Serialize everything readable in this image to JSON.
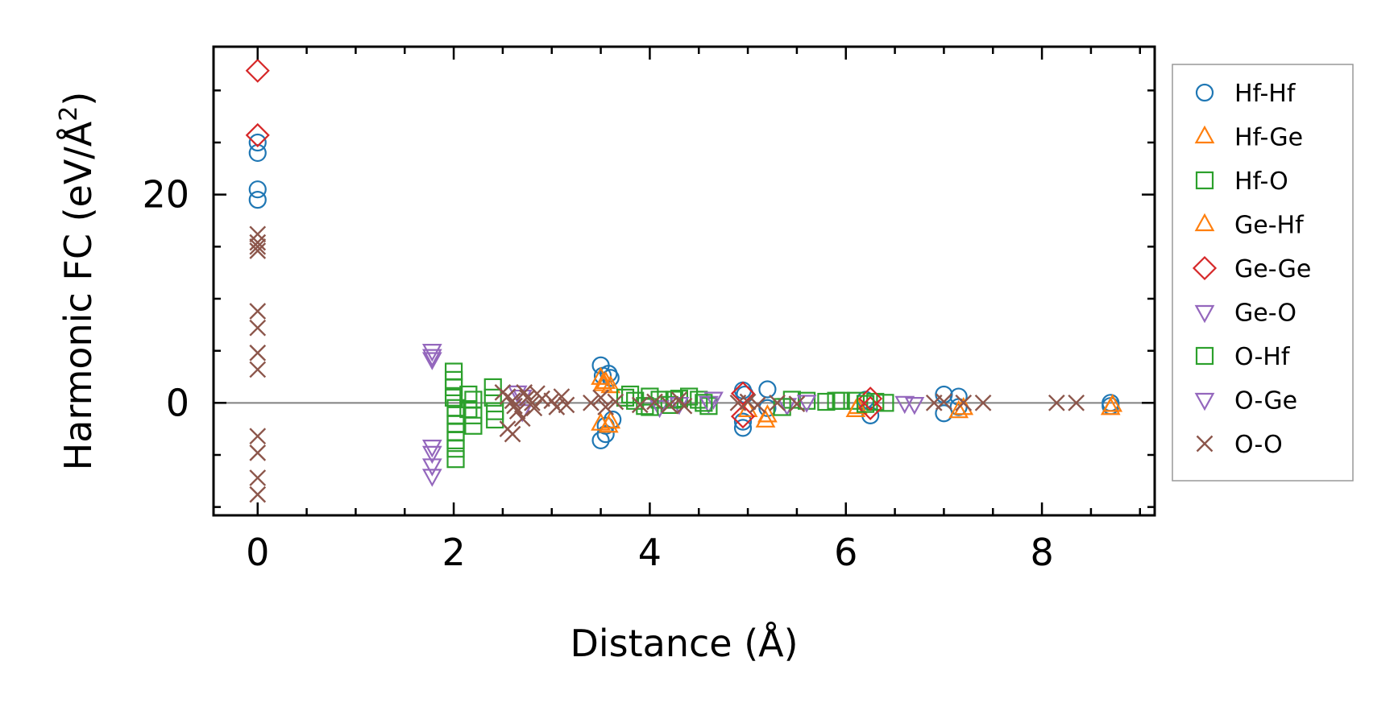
{
  "chart_data": {
    "type": "scatter",
    "xlabel": "Distance (Å)",
    "ylabel_main": "Harmonic FC (eV/Å",
    "ylabel_sup": "2",
    "ylabel_close": ")",
    "xlim": [
      -0.45,
      9.15
    ],
    "ylim": [
      -10.8,
      34.2
    ],
    "xticks": [
      0,
      2,
      4,
      6,
      8
    ],
    "yticks": [
      0,
      20
    ],
    "x_minor_step": 0.5,
    "y_minor_step": 5,
    "zero_line": true,
    "legend_position": "right-outside",
    "series": [
      {
        "name": "Hf-Hf",
        "marker": "circle",
        "color": "#1f77b4",
        "points": [
          [
            0,
            25
          ],
          [
            0,
            24
          ],
          [
            0,
            20.5
          ],
          [
            0,
            19.5
          ],
          [
            3.5,
            3.6
          ],
          [
            3.52,
            2.6
          ],
          [
            3.55,
            -2.2
          ],
          [
            3.5,
            -3.6
          ],
          [
            3.58,
            2.8
          ],
          [
            3.6,
            2.4
          ],
          [
            3.62,
            -1.6
          ],
          [
            3.55,
            -3.0
          ],
          [
            4.95,
            1.2
          ],
          [
            4.95,
            -2.4
          ],
          [
            4.95,
            -1.8
          ],
          [
            4.97,
            0.8
          ],
          [
            5.2,
            1.3
          ],
          [
            5.2,
            -0.5
          ],
          [
            6.25,
            -1.2
          ],
          [
            6.2,
            0.3
          ],
          [
            7.0,
            0.8
          ],
          [
            7.0,
            -1.0
          ],
          [
            7.15,
            0.6
          ],
          [
            7.15,
            -0.4
          ],
          [
            8.7,
            0.0
          ],
          [
            8.7,
            -0.3
          ]
        ]
      },
      {
        "name": "Hf-Ge",
        "marker": "triangle-up",
        "color": "#ff7f0e",
        "points": [
          [
            3.5,
            2.4
          ],
          [
            3.55,
            2.0
          ],
          [
            3.6,
            1.6
          ],
          [
            3.5,
            -2.0
          ],
          [
            3.58,
            -2.2
          ],
          [
            5.0,
            -0.7
          ],
          [
            5.18,
            -1.7
          ],
          [
            6.1,
            -0.7
          ],
          [
            7.15,
            -0.8
          ],
          [
            8.7,
            -0.5
          ]
        ]
      },
      {
        "name": "Hf-O",
        "marker": "square",
        "color": "#2ca02c",
        "points": [
          [
            2.0,
            3.0
          ],
          [
            2.0,
            2.2
          ],
          [
            2.0,
            1.5
          ],
          [
            2.0,
            0.5
          ],
          [
            2.02,
            -0.5
          ],
          [
            2.02,
            -1.2
          ],
          [
            2.02,
            -2.0
          ],
          [
            2.02,
            -2.8
          ],
          [
            2.02,
            -3.6
          ],
          [
            2.02,
            -4.4
          ],
          [
            2.02,
            -5.4
          ],
          [
            2.15,
            0.8
          ],
          [
            2.15,
            -0.6
          ],
          [
            2.2,
            0.3
          ],
          [
            2.2,
            -1.2
          ],
          [
            2.2,
            -2.2
          ],
          [
            2.4,
            1.5
          ],
          [
            2.4,
            0.5
          ],
          [
            2.42,
            -0.8
          ],
          [
            2.42,
            -1.6
          ],
          [
            3.75,
            0.5
          ],
          [
            3.85,
            0.2
          ],
          [
            3.95,
            -0.3
          ],
          [
            4.0,
            0.6
          ],
          [
            4.1,
            0.3
          ],
          [
            4.2,
            -0.2
          ],
          [
            4.3,
            0.4
          ],
          [
            4.4,
            0.6
          ],
          [
            4.5,
            0.3
          ],
          [
            4.6,
            -0.3
          ],
          [
            5.45,
            0.3
          ],
          [
            5.6,
            0.2
          ],
          [
            5.8,
            0.1
          ],
          [
            5.95,
            0.2
          ],
          [
            6.1,
            0.2
          ],
          [
            6.3,
            0.1
          ],
          [
            6.4,
            0.0
          ]
        ]
      },
      {
        "name": "Ge-Hf",
        "marker": "triangle-up",
        "color": "#ff7f0e",
        "points": [
          [
            3.52,
            1.8
          ],
          [
            3.6,
            -1.8
          ],
          [
            5.2,
            -1.2
          ],
          [
            6.12,
            -0.4
          ],
          [
            7.2,
            -0.5
          ],
          [
            8.72,
            -0.2
          ]
        ]
      },
      {
        "name": "Ge-Ge",
        "marker": "diamond",
        "color": "#d62728",
        "points": [
          [
            0,
            31.9
          ],
          [
            0,
            25.7
          ],
          [
            4.95,
            0.9
          ],
          [
            4.95,
            -1.3
          ],
          [
            6.25,
            0.4
          ],
          [
            6.25,
            -0.5
          ]
        ]
      },
      {
        "name": "Ge-O",
        "marker": "triangle-down",
        "color": "#9467bd",
        "points": [
          [
            1.78,
            5.0
          ],
          [
            1.78,
            4.5
          ],
          [
            1.78,
            4.2
          ],
          [
            1.78,
            -4.2
          ],
          [
            1.78,
            -4.8
          ],
          [
            1.78,
            -6.0
          ],
          [
            1.78,
            -7.0
          ],
          [
            2.65,
            1.0
          ],
          [
            2.7,
            -0.8
          ],
          [
            4.1,
            -0.4
          ],
          [
            4.6,
            0.0
          ],
          [
            4.65,
            0.4
          ]
        ]
      },
      {
        "name": "O-Ge",
        "marker": "triangle-down",
        "color": "#9467bd",
        "points": [
          [
            2.7,
            0.6
          ],
          [
            4.3,
            -0.1
          ],
          [
            5.4,
            -0.2
          ],
          [
            5.6,
            0.1
          ],
          [
            6.6,
            0.0
          ],
          [
            6.7,
            -0.1
          ]
        ]
      },
      {
        "name": "O-Hf",
        "marker": "square",
        "color": "#2ca02c",
        "points": [
          [
            3.8,
            0.8
          ],
          [
            4.0,
            -0.4
          ],
          [
            4.25,
            0.3
          ],
          [
            4.55,
            0.0
          ],
          [
            5.35,
            -0.4
          ],
          [
            5.9,
            0.2
          ],
          [
            6.2,
            -0.1
          ]
        ]
      },
      {
        "name": "O-O",
        "marker": "x",
        "color": "#8c564b",
        "points": [
          [
            0,
            16.2
          ],
          [
            0,
            15.4
          ],
          [
            0,
            15.0
          ],
          [
            0,
            14.6
          ],
          [
            0,
            8.8
          ],
          [
            0,
            7.2
          ],
          [
            0,
            4.8
          ],
          [
            0,
            3.2
          ],
          [
            0,
            -3.2
          ],
          [
            0,
            -4.8
          ],
          [
            0,
            -7.2
          ],
          [
            0,
            -8.8
          ],
          [
            2.5,
            1.0
          ],
          [
            2.55,
            0.6
          ],
          [
            2.6,
            0.2
          ],
          [
            2.62,
            -0.3
          ],
          [
            2.65,
            -0.8
          ],
          [
            2.55,
            -2.5
          ],
          [
            2.6,
            -3.0
          ],
          [
            2.7,
            -1.5
          ],
          [
            2.72,
            1.0
          ],
          [
            2.75,
            0.5
          ],
          [
            2.8,
            0.0
          ],
          [
            2.82,
            -0.5
          ],
          [
            2.85,
            0.9
          ],
          [
            2.9,
            0.4
          ],
          [
            3.0,
            0.2
          ],
          [
            3.05,
            -0.4
          ],
          [
            3.1,
            0.6
          ],
          [
            3.15,
            -0.2
          ],
          [
            3.4,
            0.0
          ],
          [
            3.5,
            0.5
          ],
          [
            3.55,
            -0.4
          ],
          [
            3.65,
            0.1
          ],
          [
            3.9,
            -0.2
          ],
          [
            4.05,
            0.1
          ],
          [
            4.2,
            -0.2
          ],
          [
            4.3,
            0.3
          ],
          [
            4.35,
            -0.3
          ],
          [
            4.9,
            0.0
          ],
          [
            5.0,
            0.1
          ],
          [
            5.1,
            -0.2
          ],
          [
            5.3,
            0.0
          ],
          [
            5.5,
            -0.1
          ],
          [
            6.9,
            0.0
          ],
          [
            7.0,
            0.1
          ],
          [
            7.2,
            0.0
          ],
          [
            7.4,
            0.0
          ],
          [
            8.15,
            0.0
          ],
          [
            8.35,
            0.0
          ]
        ]
      }
    ]
  }
}
